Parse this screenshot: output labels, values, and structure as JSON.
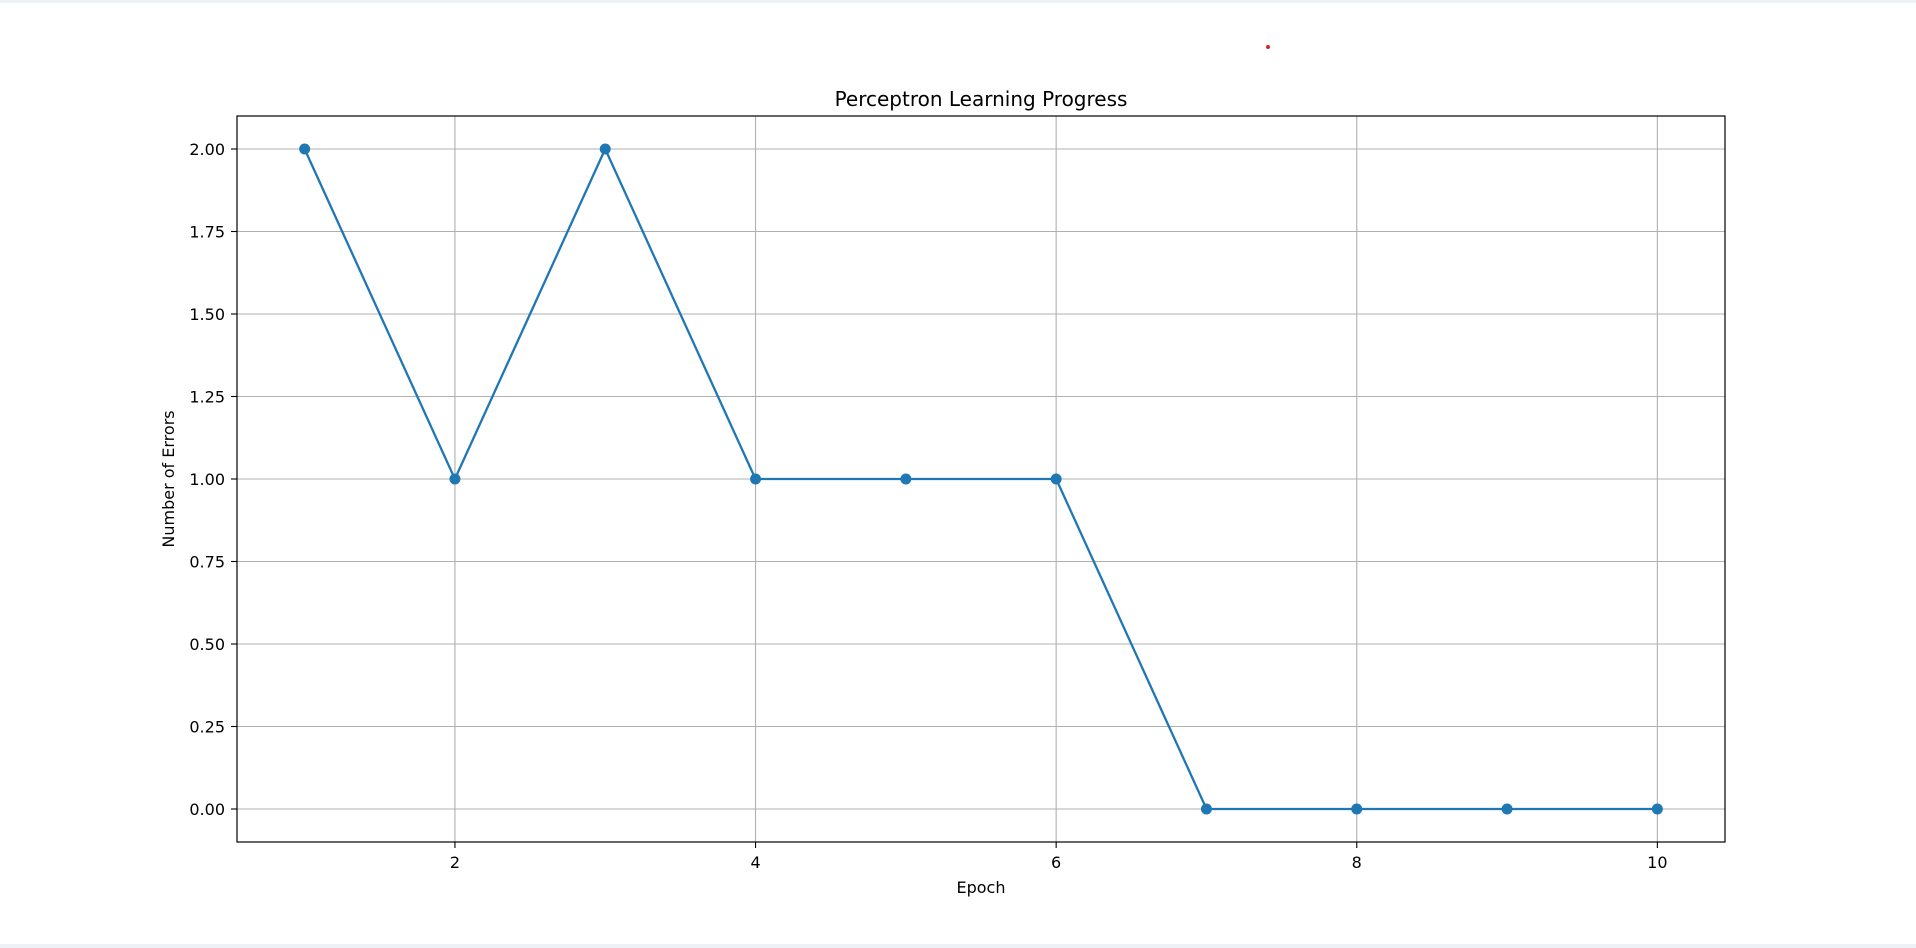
{
  "chart_data": {
    "type": "line",
    "title": "Perceptron Learning Progress",
    "xlabel": "Epoch",
    "ylabel": "Number of Errors",
    "x": [
      1,
      2,
      3,
      4,
      5,
      6,
      7,
      8,
      9,
      10
    ],
    "series": [
      {
        "values": [
          2,
          1,
          2,
          1,
          1,
          1,
          0,
          0,
          0,
          0
        ],
        "color": "#1f77b4",
        "marker": "circle"
      }
    ],
    "xlim": [
      0.55,
      10.45
    ],
    "ylim": [
      -0.1,
      2.1
    ],
    "xticks": [
      2,
      4,
      6,
      8,
      10
    ],
    "xtick_labels": [
      "2",
      "4",
      "6",
      "8",
      "10"
    ],
    "yticks": [
      0,
      0.25,
      0.5,
      0.75,
      1,
      1.25,
      1.5,
      1.75,
      2
    ],
    "ytick_labels": [
      "0.00",
      "0.25",
      "0.50",
      "0.75",
      "1.00",
      "1.25",
      "1.50",
      "1.75",
      "2.00"
    ],
    "grid": true
  },
  "colors": {
    "line": "#1f77b4",
    "grid": "#b0b0b0",
    "cursor": "#d62728"
  }
}
